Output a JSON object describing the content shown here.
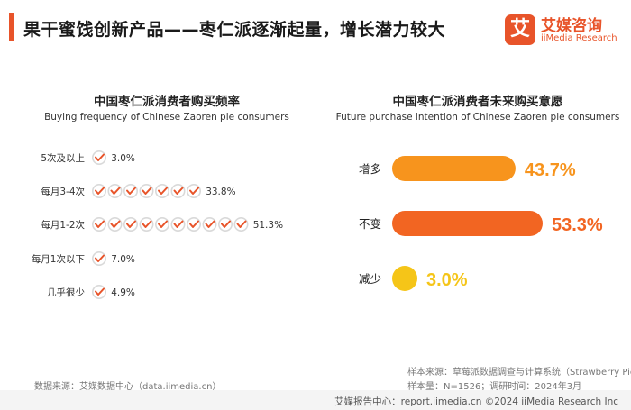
{
  "header": {
    "title": "果干蜜饯创新产品——枣仁派逐渐起量，增长潜力较大",
    "logo_mark": "艾",
    "logo_cn": "艾媒咨询",
    "logo_en": "iiMedia Research"
  },
  "colors": {
    "accent": "#e8542a",
    "icon_ring": "#d9d9d9",
    "check": "#e8542a",
    "bar_increase": "#f7941d",
    "bar_same": "#f26522",
    "bar_decrease": "#f5c518",
    "value_increase": "#f7941d",
    "value_same": "#f26522",
    "value_decrease": "#f5c518"
  },
  "chart_data": [
    {
      "type": "bar",
      "title": "中国枣仁派消费者购买频率",
      "subtitle": "Buying frequency of Chinese Zaoren pie consumers",
      "categories": [
        "5次及以上",
        "每月3-4次",
        "每月1-2次",
        "每月1次以下",
        "几乎很少"
      ],
      "values": [
        3.0,
        33.8,
        51.3,
        7.0,
        4.9
      ],
      "labels": [
        "3.0%",
        "33.8%",
        "51.3%",
        "7.0%",
        "4.9%"
      ],
      "unit": "%",
      "icon": "check-circle-icon",
      "icon_unit_value": 5
    },
    {
      "type": "bar",
      "title": "中国枣仁派消费者未来购买意愿",
      "subtitle": "Future purchase intention of Chinese Zaoren pie consumers",
      "categories": [
        "增多",
        "不变",
        "减少"
      ],
      "values": [
        43.7,
        53.3,
        3.0
      ],
      "labels": [
        "43.7%",
        "53.3%",
        "3.0%"
      ],
      "unit": "%",
      "xlim": [
        0,
        53.3
      ]
    }
  ],
  "footer": {
    "source_left": "数据来源：艾媒数据中心（data.iimedia.cn）",
    "sample_source": "样本来源：草莓派数据调查与计算系统（Strawberry Pie）",
    "sample_info": "样本量：N=1526；调研时间：2024年3月",
    "credit": "艾媒报告中心：report.iimedia.cn    ©2024  iiMedia Research Inc"
  }
}
